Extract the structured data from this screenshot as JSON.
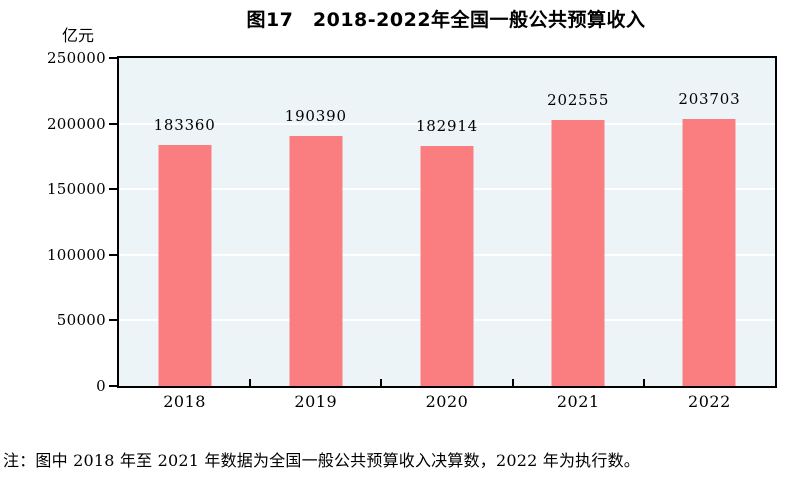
{
  "figure": {
    "title": "图17　2018-2022年全国一般公共预算收入",
    "unit_label": "亿元",
    "note": "注：图中 2018 年至 2021 年数据为全国一般公共预算收入决算数，2022 年为执行数。"
  },
  "chart_data": {
    "type": "bar",
    "title": "图17　2018-2022年全国一般公共预算收入",
    "categories": [
      "2018",
      "2019",
      "2020",
      "2021",
      "2022"
    ],
    "values": [
      183360,
      190390,
      182914,
      202555,
      203703
    ],
    "xlabel": "",
    "ylabel": "亿元",
    "ylim": [
      0,
      250000
    ],
    "yticks": [
      0,
      50000,
      100000,
      150000,
      200000,
      250000
    ],
    "grid": true,
    "data_labels": true,
    "legend": "none",
    "colors": {
      "bar": "#FA7E80",
      "plot_background": "#ECF4F7",
      "gridline": "#FFFFFF",
      "axis": "#000000",
      "text": "#000000",
      "page_background": "#FFFFFF"
    }
  }
}
